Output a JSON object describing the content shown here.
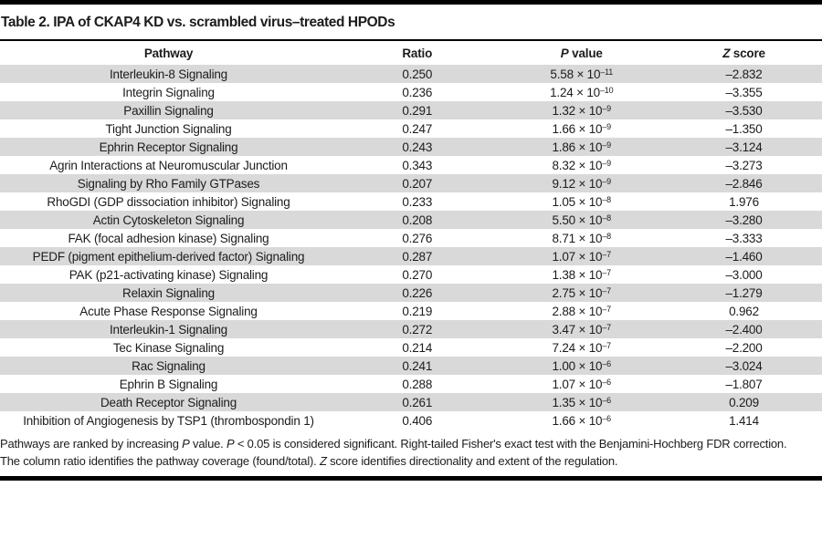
{
  "title": "Table 2. IPA of CKAP4 KD vs. scrambled virus–treated HPODs",
  "colors": {
    "stripe_gray": "#d9d9d9",
    "rule_black": "#000000"
  },
  "table": {
    "p_base": " × 10",
    "columns": [
      {
        "italic": "",
        "label": "Pathway"
      },
      {
        "italic": "",
        "label": "Ratio"
      },
      {
        "italic": "P",
        "label": " value"
      },
      {
        "italic": "Z",
        "label": " score"
      }
    ],
    "rows": [
      {
        "pathway": "Interleukin-8 Signaling",
        "ratio": "0.250",
        "p_mantissa": "5.58",
        "p_exponent": "–11",
        "z_score": "–2.832"
      },
      {
        "pathway": "Integrin Signaling",
        "ratio": "0.236",
        "p_mantissa": "1.24",
        "p_exponent": "–10",
        "z_score": "–3.355"
      },
      {
        "pathway": "Paxillin Signaling",
        "ratio": "0.291",
        "p_mantissa": "1.32",
        "p_exponent": "–9",
        "z_score": "–3.530"
      },
      {
        "pathway": "Tight Junction Signaling",
        "ratio": "0.247",
        "p_mantissa": "1.66",
        "p_exponent": "–9",
        "z_score": "–1.350"
      },
      {
        "pathway": "Ephrin Receptor Signaling",
        "ratio": "0.243",
        "p_mantissa": "1.86",
        "p_exponent": "–9",
        "z_score": "–3.124"
      },
      {
        "pathway": "Agrin Interactions at Neuromuscular Junction",
        "ratio": "0.343",
        "p_mantissa": "8.32",
        "p_exponent": "–9",
        "z_score": "–3.273"
      },
      {
        "pathway": "Signaling by Rho Family GTPases",
        "ratio": "0.207",
        "p_mantissa": "9.12",
        "p_exponent": "–9",
        "z_score": "–2.846"
      },
      {
        "pathway": "RhoGDI (GDP dissociation inhibitor) Signaling",
        "ratio": "0.233",
        "p_mantissa": "1.05",
        "p_exponent": "–8",
        "z_score": "1.976"
      },
      {
        "pathway": "Actin Cytoskeleton Signaling",
        "ratio": "0.208",
        "p_mantissa": "5.50",
        "p_exponent": "–8",
        "z_score": "–3.280"
      },
      {
        "pathway": "FAK (focal adhesion kinase) Signaling",
        "ratio": "0.276",
        "p_mantissa": "8.71",
        "p_exponent": "–8",
        "z_score": "–3.333"
      },
      {
        "pathway": "PEDF (pigment epithelium-derived factor) Signaling",
        "ratio": "0.287",
        "p_mantissa": "1.07",
        "p_exponent": "–7",
        "z_score": "–1.460"
      },
      {
        "pathway": "PAK (p21-activating kinase) Signaling",
        "ratio": "0.270",
        "p_mantissa": "1.38",
        "p_exponent": "–7",
        "z_score": "–3.000"
      },
      {
        "pathway": "Relaxin Signaling",
        "ratio": "0.226",
        "p_mantissa": "2.75",
        "p_exponent": "–7",
        "z_score": "–1.279"
      },
      {
        "pathway": "Acute Phase Response Signaling",
        "ratio": "0.219",
        "p_mantissa": "2.88",
        "p_exponent": "–7",
        "z_score": "0.962"
      },
      {
        "pathway": "Interleukin-1 Signaling",
        "ratio": "0.272",
        "p_mantissa": "3.47",
        "p_exponent": "–7",
        "z_score": "–2.400"
      },
      {
        "pathway": "Tec Kinase Signaling",
        "ratio": "0.214",
        "p_mantissa": "7.24",
        "p_exponent": "–7",
        "z_score": "–2.200"
      },
      {
        "pathway": "Rac Signaling",
        "ratio": "0.241",
        "p_mantissa": "1.00",
        "p_exponent": "–6",
        "z_score": "–3.024"
      },
      {
        "pathway": "Ephrin B Signaling",
        "ratio": "0.288",
        "p_mantissa": "1.07",
        "p_exponent": "–6",
        "z_score": "–1.807"
      },
      {
        "pathway": "Death Receptor Signaling",
        "ratio": "0.261",
        "p_mantissa": "1.35",
        "p_exponent": "–6",
        "z_score": "0.209"
      },
      {
        "pathway": "Inhibition of Angiogenesis by TSP1 (thrombospondin 1)",
        "ratio": "0.406",
        "p_mantissa": "1.66",
        "p_exponent": "–6",
        "z_score": "1.414"
      }
    ]
  },
  "footnotes": [
    [
      {
        "text": "Pathways are ranked by increasing "
      },
      {
        "text": "P",
        "italic": true
      },
      {
        "text": " value. "
      },
      {
        "text": "P",
        "italic": true
      },
      {
        "text": " < 0.05 is considered significant. Right-tailed Fisher's exact test with the Benjamini-Hochberg FDR correction."
      }
    ],
    [
      {
        "text": "The column ratio identifies the pathway coverage (found/total). "
      },
      {
        "text": "Z",
        "italic": true
      },
      {
        "text": " score identifies directionality and extent of the regulation."
      }
    ]
  ]
}
